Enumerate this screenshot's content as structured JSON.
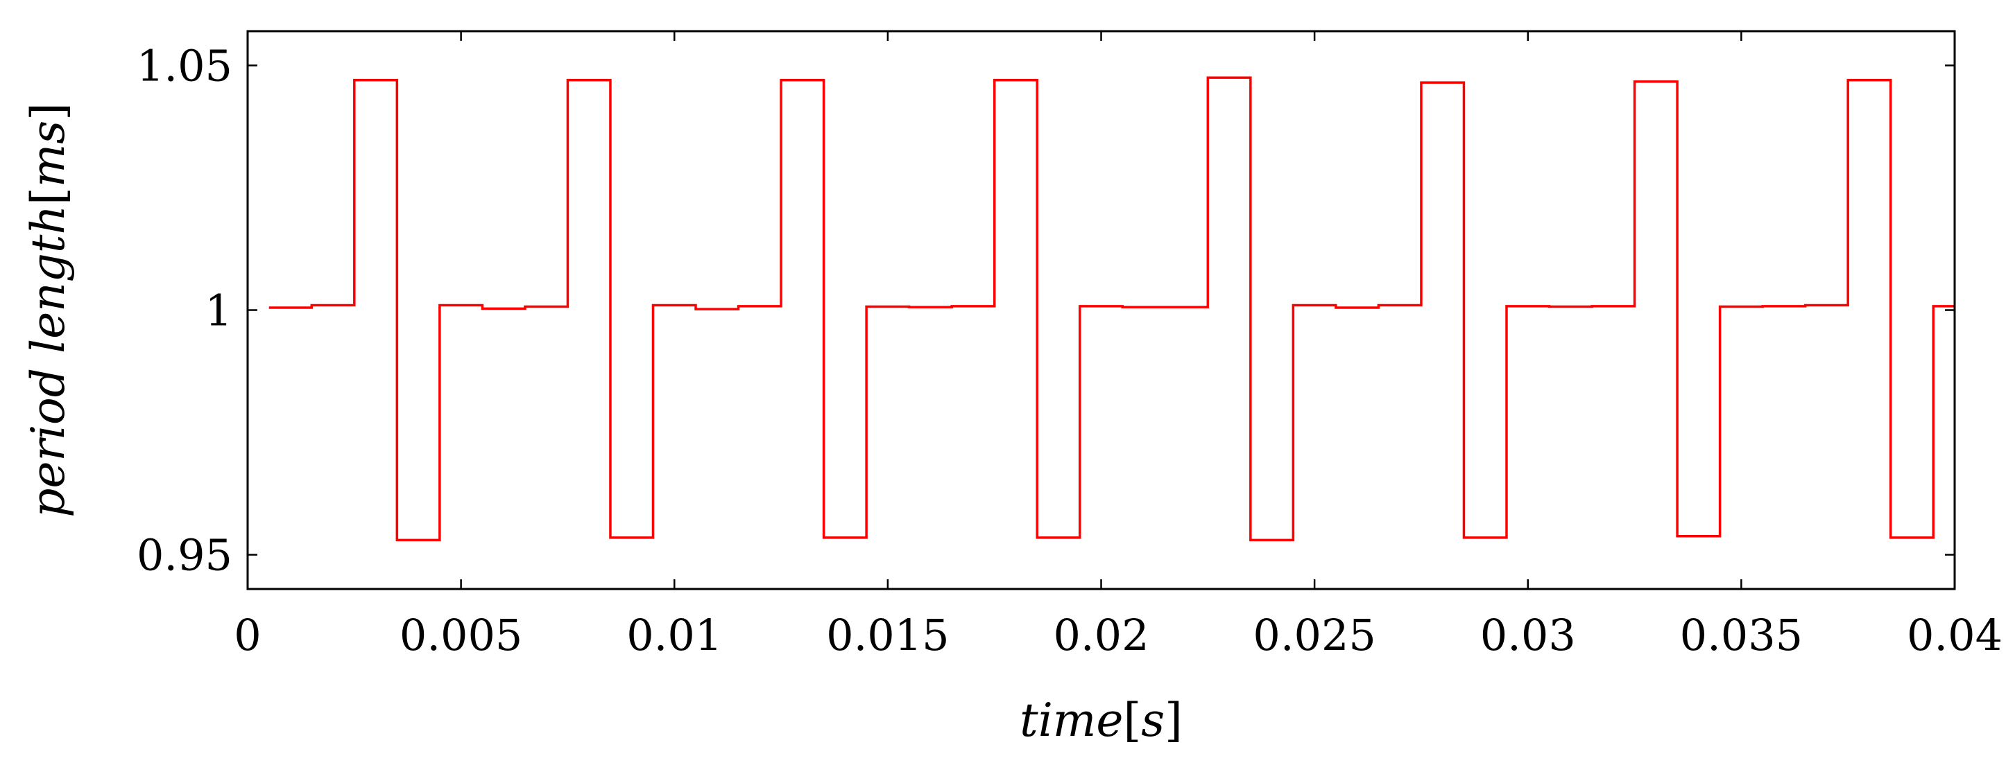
{
  "chart_data": {
    "type": "line",
    "step": true,
    "xlabel_parts": {
      "main": "time",
      "open": "[",
      "unit": "s",
      "close": "]"
    },
    "ylabel_parts": {
      "main": "period length",
      "open": "[",
      "unit": "ms",
      "close": "]"
    },
    "xlim": [
      0,
      0.04
    ],
    "ylim": [
      0.943,
      1.057
    ],
    "xticks": [
      0,
      0.005,
      0.01,
      0.015,
      0.02,
      0.025,
      0.03,
      0.035,
      0.04
    ],
    "xtick_labels": [
      "0",
      "0.005",
      "0.01",
      "0.015",
      "0.02",
      "0.025",
      "0.03",
      "0.035",
      "0.04"
    ],
    "yticks": [
      0.95,
      1,
      1.05
    ],
    "ytick_labels": [
      "0.95",
      "1",
      "1.05"
    ],
    "grid": false,
    "series": [
      {
        "color": "#ff0000",
        "x": [
          0.0005,
          0.0015,
          0.0025,
          0.0035,
          0.0045,
          0.0055,
          0.0065,
          0.0075,
          0.0085,
          0.0095,
          0.0105,
          0.0115,
          0.0125,
          0.0135,
          0.0145,
          0.0155,
          0.0165,
          0.0175,
          0.0185,
          0.0195,
          0.0205,
          0.0215,
          0.0225,
          0.0235,
          0.0245,
          0.0255,
          0.0265,
          0.0275,
          0.0285,
          0.0295,
          0.0305,
          0.0315,
          0.0325,
          0.0335,
          0.0345,
          0.0355,
          0.0365,
          0.0375,
          0.0385,
          0.0395,
          0.04
        ],
        "y": [
          1.0005,
          1.001,
          1.047,
          0.953,
          1.001,
          1.0003,
          1.0007,
          1.047,
          0.9535,
          1.001,
          1.0002,
          1.0008,
          1.047,
          0.9535,
          1.0007,
          1.0006,
          1.0008,
          1.047,
          0.9535,
          1.0008,
          1.0006,
          1.0006,
          1.0475,
          0.953,
          1.001,
          1.0005,
          1.001,
          1.0465,
          0.9535,
          1.0008,
          1.0007,
          1.0008,
          1.0467,
          0.9538,
          1.0007,
          1.0008,
          1.001,
          1.047,
          0.9535,
          1.0008,
          1.0008
        ]
      }
    ]
  }
}
